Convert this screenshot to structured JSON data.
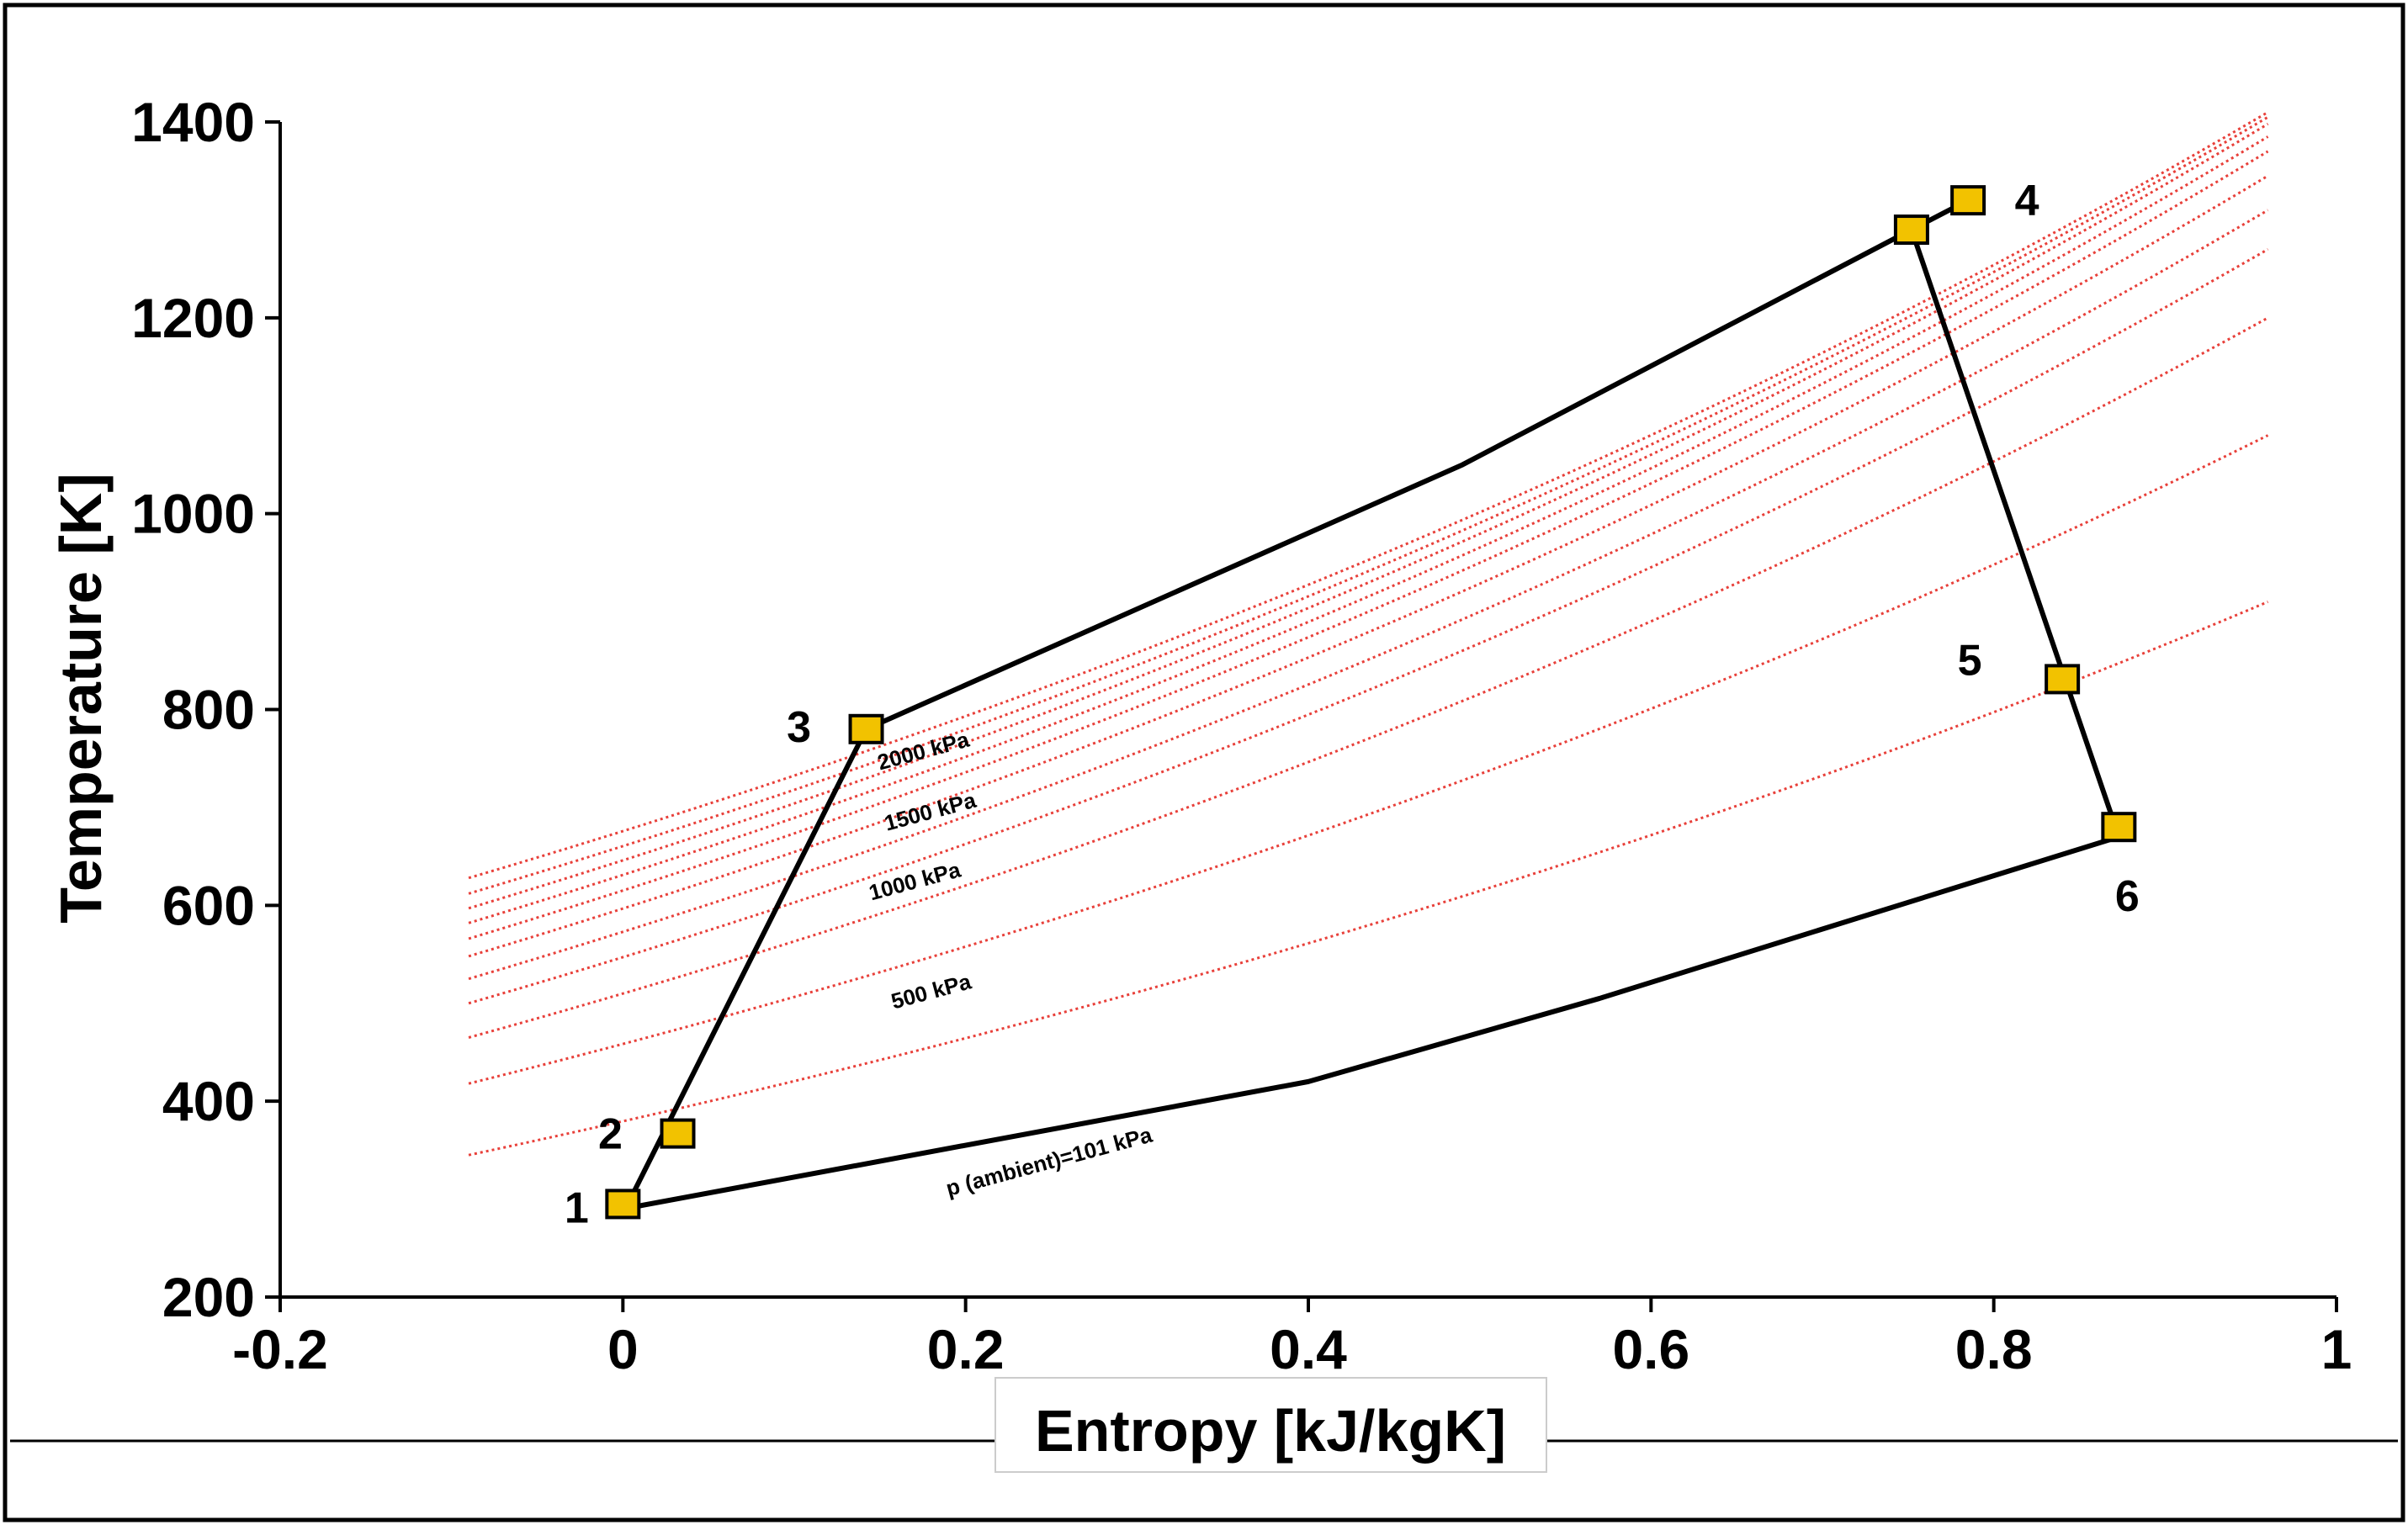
{
  "chart_data": {
    "type": "scatter",
    "title": "",
    "xlabel": "Entropy [kJ/kgK]",
    "ylabel": "Temperature [K]",
    "xlim": [
      -0.2,
      1
    ],
    "ylim": [
      200,
      1400
    ],
    "x_ticks": [
      "-0.2",
      "0",
      "0.2",
      "0.4",
      "0.6",
      "0.8",
      "1"
    ],
    "y_ticks": [
      "200",
      "400",
      "600",
      "800",
      "1000",
      "1200",
      "1400"
    ],
    "grid": false,
    "legend": "none",
    "colors": {
      "cycle": "#000000",
      "isobar": "#e8403a",
      "marker_fill": "#f2c200",
      "marker_edge": "#000000"
    },
    "points": [
      {
        "label": "1",
        "x": 0.0,
        "y": 295
      },
      {
        "label": "2",
        "x": 0.032,
        "y": 367
      },
      {
        "label": "3",
        "x": 0.142,
        "y": 780
      },
      {
        "label": "",
        "x": 0.752,
        "y": 1290
      },
      {
        "label": "4",
        "x": 0.785,
        "y": 1320
      },
      {
        "label": "5",
        "x": 0.84,
        "y": 831
      },
      {
        "label": "6",
        "x": 0.873,
        "y": 680
      }
    ],
    "cycle_path": [
      {
        "x": 0.0,
        "y": 285
      },
      {
        "x": 0.142,
        "y": 780
      },
      {
        "x": 0.49,
        "y": 1050
      },
      {
        "x": 0.752,
        "y": 1290
      },
      {
        "x": 0.785,
        "y": 1320
      },
      {
        "x": 0.752,
        "y": 1290
      },
      {
        "x": 0.873,
        "y": 670
      },
      {
        "x": 0.57,
        "y": 505
      },
      {
        "x": 0.4,
        "y": 420
      },
      {
        "x": 0.0,
        "y": 290
      }
    ],
    "isobars": [
      {
        "x_start": -0.09,
        "x_end": 0.96,
        "y_start": 345,
        "y_end": 910
      },
      {
        "x_start": -0.09,
        "x_end": 0.96,
        "y_start": 418,
        "y_end": 1080
      },
      {
        "x_start": -0.09,
        "x_end": 0.96,
        "y_start": 465,
        "y_end": 1200
      },
      {
        "x_start": -0.09,
        "x_end": 0.96,
        "y_start": 500,
        "y_end": 1270
      },
      {
        "x_start": -0.09,
        "x_end": 0.96,
        "y_start": 525,
        "y_end": 1310
      },
      {
        "x_start": -0.09,
        "x_end": 0.96,
        "y_start": 548,
        "y_end": 1345
      },
      {
        "x_start": -0.09,
        "x_end": 0.96,
        "y_start": 566,
        "y_end": 1370
      },
      {
        "x_start": -0.09,
        "x_end": 0.96,
        "y_start": 582,
        "y_end": 1385
      },
      {
        "x_start": -0.09,
        "x_end": 0.96,
        "y_start": 597,
        "y_end": 1398
      },
      {
        "x_start": -0.09,
        "x_end": 0.96,
        "y_start": 612,
        "y_end": 1405
      },
      {
        "x_start": -0.09,
        "x_end": 0.96,
        "y_start": 628,
        "y_end": 1410
      }
    ],
    "annotations": [
      {
        "text": "2000 kPa",
        "x": 0.15,
        "y": 738
      },
      {
        "text": "1500 kPa",
        "x": 0.154,
        "y": 676
      },
      {
        "text": "1000 kPa",
        "x": 0.145,
        "y": 605
      },
      {
        "text": "500 kPa",
        "x": 0.158,
        "y": 494
      },
      {
        "text": "p (ambient)=101 kPa",
        "x": 0.19,
        "y": 303
      }
    ]
  }
}
